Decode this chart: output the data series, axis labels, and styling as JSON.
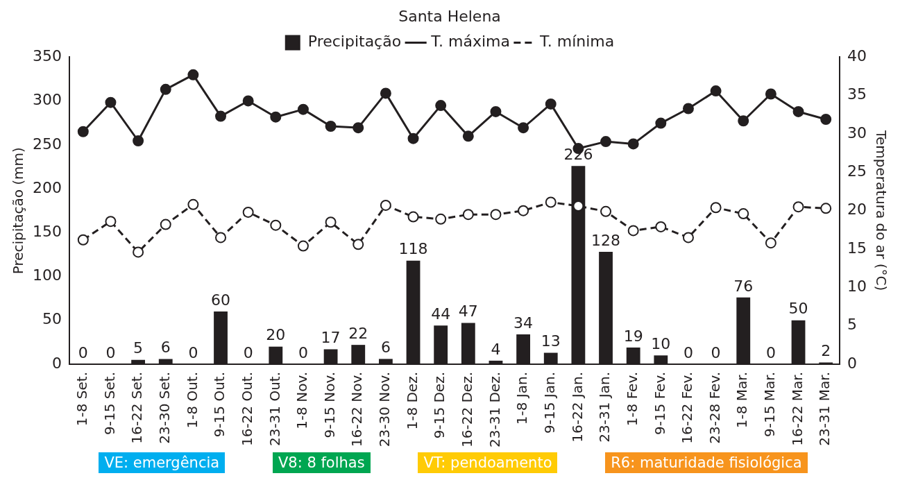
{
  "chart_data": {
    "type": "bar",
    "title": "Santa Helena",
    "ylabel": "Precipitação (mm)",
    "y2label": "Temperatura do ar (°C)",
    "categories": [
      "1-8 Set.",
      "9-15 Set.",
      "16-22 Set.",
      "23-30 Set.",
      "1-8 Out.",
      "9-15 Out.",
      "16-22 Out.",
      "23-31 Out.",
      "1-8 Nov.",
      "9-15 Nov.",
      "16-22 Nov.",
      "23-30 Nov.",
      "1-8 Dez.",
      "9-15 Dez.",
      "16-22 Dez.",
      "23-31 Dez.",
      "1-8 Jan.",
      "9-15 Jan.",
      "16-22 Jan.",
      "23-31 Jan.",
      "1-8 Fev.",
      "9-15 Fev.",
      "16-22 Fev.",
      "23-28 Fev.",
      "1-8 Mar.",
      "9-15 Mar.",
      "16-22 Mar.",
      "23-31 Mar."
    ],
    "series": [
      {
        "name": "Precipitação",
        "color": "#231f20",
        "values": [
          0,
          0,
          5,
          6,
          0,
          60,
          0,
          20,
          0,
          17,
          22,
          6,
          118,
          44,
          47,
          4,
          34,
          13,
          226,
          128,
          19,
          10,
          0,
          0,
          76,
          0,
          50,
          2
        ],
        "value_labels": [
          "0",
          "0",
          "5",
          "6",
          "0",
          "60",
          "0",
          "20",
          "0",
          "17",
          "22",
          "6",
          "118",
          "44",
          "47",
          "4",
          "34",
          "13",
          "226",
          "128",
          "19",
          "10",
          "0",
          "0",
          "76",
          "0",
          "50",
          "2"
        ]
      },
      {
        "name": "T. máxima",
        "type": "line",
        "axis": "y2",
        "color": "#231f20",
        "marker": "circle",
        "line_style": "solid",
        "values": [
          30.3,
          34.1,
          29.1,
          35.8,
          37.7,
          32.3,
          34.3,
          32.2,
          33.2,
          31.0,
          30.8,
          35.3,
          29.4,
          33.7,
          29.7,
          32.9,
          30.8,
          33.9,
          28.1,
          29.0,
          28.7,
          31.4,
          33.3,
          35.6,
          31.7,
          35.2,
          32.9,
          31.9
        ]
      },
      {
        "name": "T. mínima",
        "type": "line",
        "axis": "y2",
        "color": "#231f20",
        "marker": "circle",
        "line_style": "dashed",
        "values": [
          16.2,
          18.6,
          14.6,
          18.2,
          20.8,
          16.5,
          19.8,
          18.1,
          15.4,
          18.5,
          15.6,
          20.7,
          19.2,
          18.9,
          19.5,
          19.5,
          20.0,
          21.1,
          20.6,
          19.9,
          17.4,
          17.9,
          16.5,
          20.4,
          19.6,
          15.8,
          20.5,
          20.3
        ]
      }
    ],
    "ylim": [
      0,
      350
    ],
    "yticks": [
      0,
      50,
      100,
      150,
      200,
      250,
      300,
      350
    ],
    "y2lim": [
      0,
      40
    ],
    "y2ticks": [
      0,
      5,
      10,
      15,
      20,
      25,
      30,
      35,
      40
    ],
    "grid": false,
    "legend": "top",
    "annotations": [
      "VE: emergência",
      "V8: 8 folhas",
      "VT: pendoamento",
      "R6: maturidade fisiológica"
    ]
  }
}
